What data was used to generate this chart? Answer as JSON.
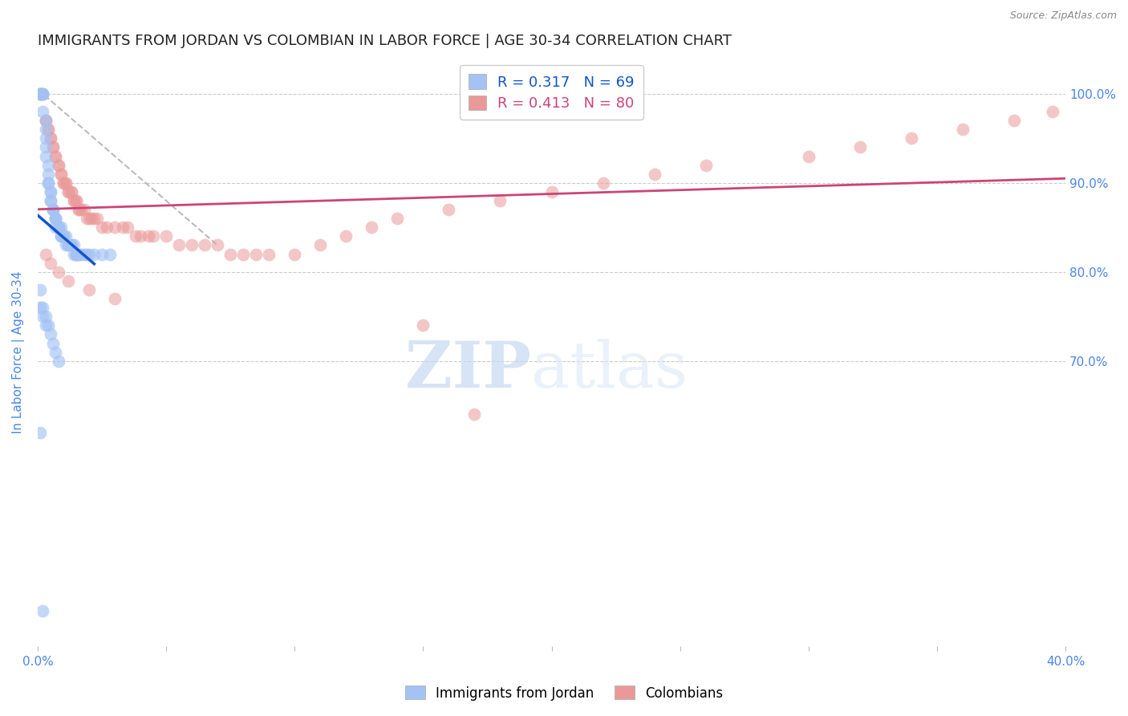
{
  "title": "IMMIGRANTS FROM JORDAN VS COLOMBIAN IN LABOR FORCE | AGE 30-34 CORRELATION CHART",
  "source": "Source: ZipAtlas.com",
  "ylabel": "In Labor Force | Age 30-34",
  "jordan_R": 0.317,
  "jordan_N": 69,
  "colombian_R": 0.413,
  "colombian_N": 80,
  "jordan_color": "#a4c2f4",
  "colombian_color": "#ea9999",
  "jordan_line_color": "#1155cc",
  "colombian_line_color": "#cc4477",
  "axis_label_color": "#4a86e8",
  "background_color": "#ffffff",
  "xlim": [
    0.0,
    0.4
  ],
  "ylim": [
    0.38,
    1.04
  ],
  "xtick_positions": [
    0.0,
    0.05,
    0.1,
    0.15,
    0.2,
    0.25,
    0.3,
    0.35,
    0.4
  ],
  "xtick_labels": [
    "0.0%",
    "",
    "",
    "",
    "",
    "",
    "",
    "",
    "40.0%"
  ],
  "ytick_right": [
    0.7,
    0.8,
    0.9,
    1.0
  ],
  "ytick_right_labels": [
    "70.0%",
    "80.0%",
    "90.0%",
    "100.0%"
  ],
  "jordan_x": [
    0.001,
    0.001,
    0.001,
    0.002,
    0.002,
    0.002,
    0.002,
    0.003,
    0.003,
    0.003,
    0.003,
    0.003,
    0.004,
    0.004,
    0.004,
    0.004,
    0.005,
    0.005,
    0.005,
    0.005,
    0.006,
    0.006,
    0.006,
    0.007,
    0.007,
    0.007,
    0.007,
    0.008,
    0.008,
    0.008,
    0.009,
    0.009,
    0.009,
    0.01,
    0.01,
    0.01,
    0.011,
    0.011,
    0.012,
    0.012,
    0.013,
    0.013,
    0.014,
    0.014,
    0.015,
    0.015,
    0.015,
    0.016,
    0.016,
    0.017,
    0.018,
    0.019,
    0.02,
    0.022,
    0.025,
    0.028,
    0.001,
    0.002,
    0.003,
    0.004,
    0.005,
    0.006,
    0.007,
    0.008,
    0.001,
    0.002,
    0.003,
    0.001,
    0.002
  ],
  "jordan_y": [
    1.0,
    1.0,
    1.0,
    1.0,
    1.0,
    1.0,
    0.98,
    0.97,
    0.96,
    0.95,
    0.94,
    0.93,
    0.92,
    0.91,
    0.9,
    0.9,
    0.89,
    0.89,
    0.88,
    0.88,
    0.87,
    0.87,
    0.87,
    0.86,
    0.86,
    0.86,
    0.85,
    0.85,
    0.85,
    0.85,
    0.85,
    0.84,
    0.84,
    0.84,
    0.84,
    0.84,
    0.84,
    0.83,
    0.83,
    0.83,
    0.83,
    0.83,
    0.83,
    0.82,
    0.82,
    0.82,
    0.82,
    0.82,
    0.82,
    0.82,
    0.82,
    0.82,
    0.82,
    0.82,
    0.82,
    0.82,
    0.78,
    0.76,
    0.75,
    0.74,
    0.73,
    0.72,
    0.71,
    0.7,
    0.76,
    0.75,
    0.74,
    0.62,
    0.42
  ],
  "colombian_x": [
    0.001,
    0.002,
    0.003,
    0.003,
    0.004,
    0.004,
    0.005,
    0.005,
    0.006,
    0.006,
    0.007,
    0.007,
    0.008,
    0.008,
    0.009,
    0.009,
    0.01,
    0.01,
    0.011,
    0.011,
    0.012,
    0.012,
    0.013,
    0.013,
    0.014,
    0.014,
    0.015,
    0.015,
    0.016,
    0.016,
    0.017,
    0.018,
    0.019,
    0.02,
    0.021,
    0.022,
    0.023,
    0.025,
    0.027,
    0.03,
    0.033,
    0.035,
    0.038,
    0.04,
    0.043,
    0.045,
    0.05,
    0.055,
    0.06,
    0.065,
    0.07,
    0.075,
    0.08,
    0.085,
    0.09,
    0.1,
    0.11,
    0.12,
    0.13,
    0.14,
    0.16,
    0.18,
    0.2,
    0.22,
    0.24,
    0.26,
    0.3,
    0.32,
    0.34,
    0.36,
    0.38,
    0.395,
    0.003,
    0.005,
    0.008,
    0.012,
    0.02,
    0.03,
    0.15,
    0.17
  ],
  "colombian_y": [
    1.0,
    1.0,
    0.97,
    0.97,
    0.96,
    0.96,
    0.95,
    0.95,
    0.94,
    0.94,
    0.93,
    0.93,
    0.92,
    0.92,
    0.91,
    0.91,
    0.9,
    0.9,
    0.9,
    0.9,
    0.89,
    0.89,
    0.89,
    0.89,
    0.88,
    0.88,
    0.88,
    0.88,
    0.87,
    0.87,
    0.87,
    0.87,
    0.86,
    0.86,
    0.86,
    0.86,
    0.86,
    0.85,
    0.85,
    0.85,
    0.85,
    0.85,
    0.84,
    0.84,
    0.84,
    0.84,
    0.84,
    0.83,
    0.83,
    0.83,
    0.83,
    0.82,
    0.82,
    0.82,
    0.82,
    0.82,
    0.83,
    0.84,
    0.85,
    0.86,
    0.87,
    0.88,
    0.89,
    0.9,
    0.91,
    0.92,
    0.93,
    0.94,
    0.95,
    0.96,
    0.97,
    0.98,
    0.82,
    0.81,
    0.8,
    0.79,
    0.78,
    0.77,
    0.74,
    0.64
  ],
  "watermark_zip": "ZIP",
  "watermark_atlas": "atlas",
  "grid_color": "#cccccc",
  "title_fontsize": 13,
  "axis_fontsize": 11,
  "tick_fontsize": 11,
  "legend_fontsize": 13
}
